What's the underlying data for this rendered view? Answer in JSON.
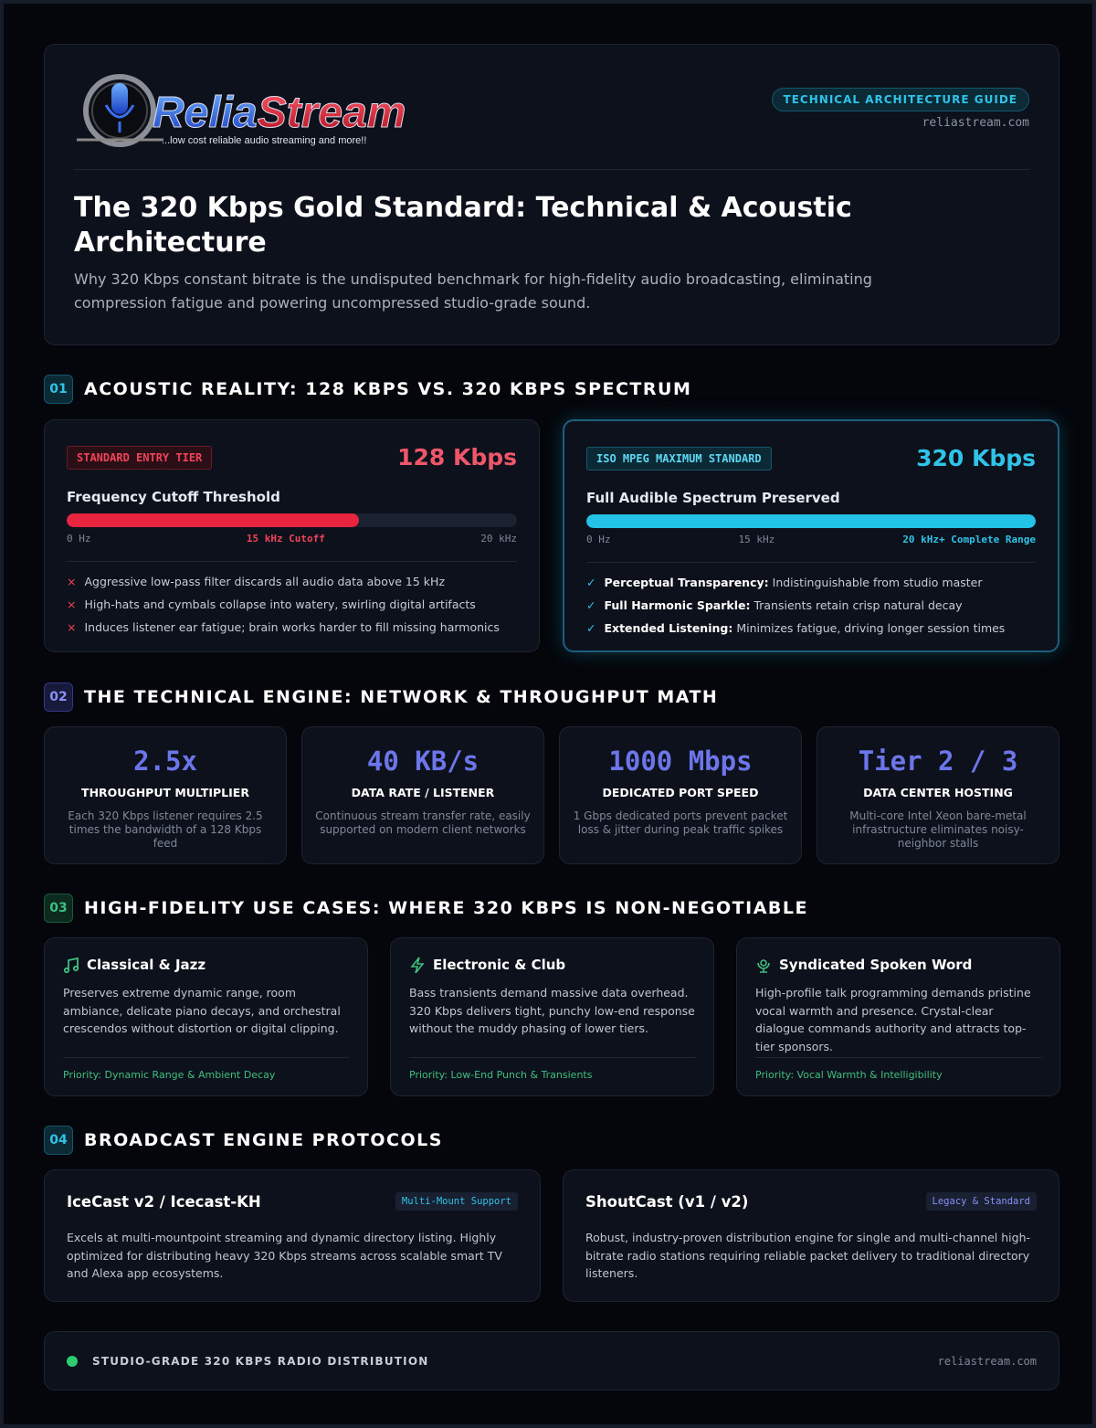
{
  "logo": {
    "brand_1": "Relia",
    "brand_2": "Stream",
    "tagline": "...low cost reliable audio streaming and more!!"
  },
  "header": {
    "badge": "TECHNICAL ARCHITECTURE GUIDE",
    "url": "reliastream.com",
    "title": "The 320 Kbps Gold Standard: Technical & Acoustic Architecture",
    "subtitle": "Why 320 Kbps constant bitrate is the undisputed benchmark for high-fidelity audio broadcasting, eliminating compression fatigue and powering uncompressed studio-grade sound."
  },
  "section_1": {
    "number": "01",
    "title": "ACOUSTIC REALITY: 128 KBPS VS. 320 KBPS SPECTRUM",
    "tiers": [
      {
        "tag": "STANDARD ENTRY TIER",
        "rate": "128 Kbps",
        "heading": "Frequency Cutoff Threshold",
        "scale": [
          "0 Hz",
          "15 kHz Cutoff",
          "20 kHz"
        ],
        "bullets": [
          {
            "mark": "×",
            "text": "Aggressive low-pass filter discards all audio data above 15 kHz"
          },
          {
            "mark": "×",
            "text": "High-hats and cymbals collapse into watery, swirling digital artifacts"
          },
          {
            "mark": "×",
            "text": "Induces listener ear fatigue; brain works harder to fill missing harmonics"
          }
        ]
      },
      {
        "tag": "ISO MPEG MAXIMUM STANDARD",
        "rate": "320 Kbps",
        "heading": "Full Audible Spectrum Preserved",
        "scale": [
          "0 Hz",
          "15 kHz",
          "20 kHz+ Complete Range"
        ],
        "bullets": [
          {
            "mark": "✓",
            "lead": "Perceptual Transparency:",
            "text": "Indistinguishable from studio master"
          },
          {
            "mark": "✓",
            "lead": "Full Harmonic Sparkle:",
            "text": "Transients retain crisp natural decay"
          },
          {
            "mark": "✓",
            "lead": "Extended Listening:",
            "text": "Minimizes fatigue, driving longer session times"
          }
        ]
      }
    ]
  },
  "section_2": {
    "number": "02",
    "title": "THE TECHNICAL ENGINE: NETWORK & THROUGHPUT MATH",
    "stats": [
      {
        "value": "2.5x",
        "label": "THROUGHPUT MULTIPLIER",
        "description": "Each 320 Kbps listener requires 2.5 times the bandwidth of a 128 Kbps feed"
      },
      {
        "value": "40 KB/s",
        "label": "DATA RATE / LISTENER",
        "description": "Continuous stream transfer rate, easily supported on modern client networks"
      },
      {
        "value": "1000 Mbps",
        "label": "DEDICATED PORT SPEED",
        "description": "1 Gbps dedicated ports prevent packet loss & jitter during peak traffic spikes"
      },
      {
        "value": "Tier 2 / 3",
        "label": "DATA CENTER HOSTING",
        "description": "Multi-core Intel Xeon bare-metal infrastructure eliminates noisy-neighbor stalls"
      }
    ]
  },
  "section_3": {
    "number": "03",
    "title": "HIGH-FIDELITY USE CASES: WHERE 320 KBPS IS NON-NEGOTIABLE",
    "cases": [
      {
        "title": "Classical & Jazz",
        "description": "Preserves extreme dynamic range, room ambiance, delicate piano decays, and orchestral crescendos without distortion or digital clipping.",
        "priority": "Priority: Dynamic Range & Ambient Decay"
      },
      {
        "title": "Electronic & Club",
        "description": "Bass transients demand massive data overhead. 320 Kbps delivers tight, punchy low-end response without the muddy phasing of lower tiers.",
        "priority": "Priority: Low-End Punch & Transients"
      },
      {
        "title": "Syndicated Spoken Word",
        "description": "High-profile talk programming demands pristine vocal warmth and presence. Crystal-clear dialogue commands authority and attracts top-tier sponsors.",
        "priority": "Priority: Vocal Warmth & Intelligibility"
      }
    ]
  },
  "section_4": {
    "number": "04",
    "title": "BROADCAST ENGINE PROTOCOLS",
    "protocols": [
      {
        "title": "IceCast v2 / Icecast-KH",
        "tag": "Multi-Mount Support",
        "description": "Excels at multi-mountpoint streaming and dynamic directory listing. Highly optimized for distributing heavy 320 Kbps streams across scalable smart TV and Alexa app ecosystems."
      },
      {
        "title": "ShoutCast (v1 / v2)",
        "tag": "Legacy & Standard",
        "description": "Robust, industry-proven distribution engine for single and multi-channel high-bitrate radio stations requiring reliable packet delivery to traditional directory listeners."
      }
    ]
  },
  "footer": {
    "text": "STUDIO-GRADE 320 KBPS RADIO DISTRIBUTION",
    "url": "reliastream.com"
  }
}
